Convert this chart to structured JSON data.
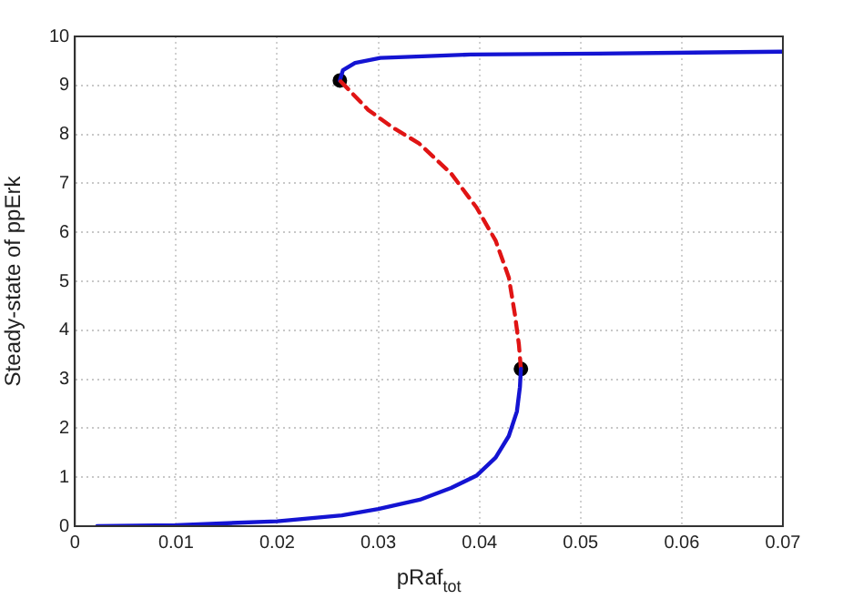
{
  "chart_data": {
    "type": "line",
    "xlabel": "pRaf$_{tot}$",
    "ylabel": "Steady-state of ppErk",
    "xlim": [
      0,
      0.07
    ],
    "xticks": [
      0,
      0.01,
      0.02,
      0.03,
      0.04,
      0.05,
      0.06,
      0.07
    ],
    "ylim": [
      0,
      10
    ],
    "yticks": [
      0,
      1,
      2,
      3,
      4,
      5,
      6,
      7,
      8,
      9,
      10
    ],
    "grid": true,
    "legend": false,
    "marker": "none",
    "series": [
      {
        "type": "line",
        "color": "#1414d2",
        "line_style": "solid",
        "x": [
          0.0022,
          0.01,
          0.02,
          0.0264,
          0.03,
          0.0341,
          0.0372,
          0.0397,
          0.0416,
          0.0429,
          0.0437,
          0.044,
          0.0441
        ],
        "values": [
          0,
          0.02,
          0.1,
          0.22,
          0.35,
          0.54,
          0.78,
          1.03,
          1.4,
          1.84,
          2.34,
          2.84,
          3.21
        ]
      },
      {
        "type": "line",
        "color": "#e01414",
        "line_style": "dashed",
        "x": [
          0.0441,
          0.0439,
          0.0435,
          0.0429,
          0.0416,
          0.0397,
          0.0372,
          0.034,
          0.0315,
          0.029,
          0.0262
        ],
        "values": [
          3.21,
          3.71,
          4.33,
          5.08,
          5.83,
          6.51,
          7.2,
          7.82,
          8.13,
          8.5,
          9.1
        ]
      },
      {
        "type": "line",
        "color": "#1414d2",
        "line_style": "solid",
        "x": [
          0.0262,
          0.0265,
          0.0277,
          0.0302,
          0.0391,
          0.0518,
          0.07
        ],
        "values": [
          9.1,
          9.31,
          9.46,
          9.56,
          9.63,
          9.65,
          9.69
        ]
      },
      {
        "type": "scatter",
        "color": "#000000",
        "marker": "circle",
        "x": [
          0.0262,
          0.0441
        ],
        "values": [
          9.1,
          3.21
        ]
      }
    ]
  }
}
